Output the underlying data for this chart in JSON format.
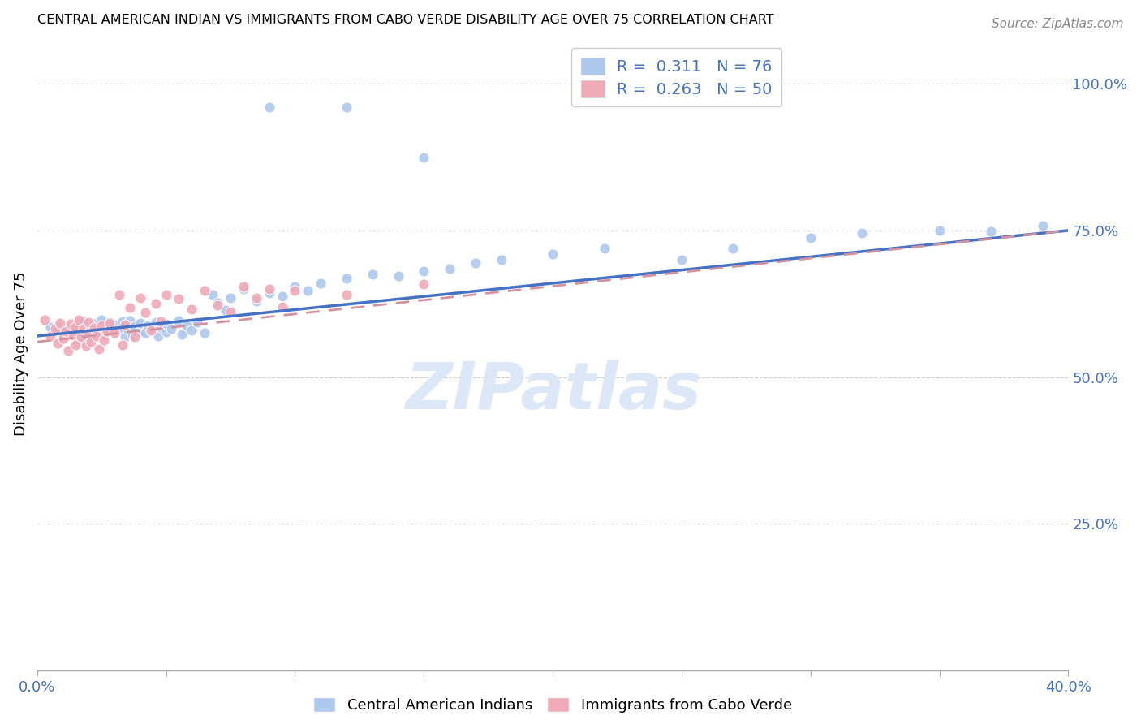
{
  "title": "CENTRAL AMERICAN INDIAN VS IMMIGRANTS FROM CABO VERDE DISABILITY AGE OVER 75 CORRELATION CHART",
  "source": "Source: ZipAtlas.com",
  "ylabel": "Disability Age Over 75",
  "xlim": [
    0.0,
    0.4
  ],
  "ylim": [
    0.0,
    1.08
  ],
  "xtick_positions": [
    0.0,
    0.05,
    0.1,
    0.15,
    0.2,
    0.25,
    0.3,
    0.35,
    0.4
  ],
  "xticklabels": [
    "0.0%",
    "",
    "",
    "",
    "",
    "",
    "",
    "",
    "40.0%"
  ],
  "ytick_right_positions": [
    0.25,
    0.5,
    0.75,
    1.0
  ],
  "ytick_right_labels": [
    "25.0%",
    "50.0%",
    "75.0%",
    "100.0%"
  ],
  "r_blue": 0.311,
  "n_blue": 76,
  "r_pink": 0.263,
  "n_pink": 50,
  "blue_color": "#adc8ed",
  "pink_color": "#f0aab8",
  "trendline_blue": "#4472c4",
  "trendline_pink_color": "#d4919e",
  "watermark": "ZIPatlas",
  "watermark_color": "#dce8f8",
  "legend_label_blue": "Central American Indians",
  "legend_label_pink": "Immigrants from Cabo Verde",
  "grid_color": "#cccccc",
  "blue_x": [
    0.005,
    0.008,
    0.01,
    0.01,
    0.012,
    0.015,
    0.015,
    0.016,
    0.017,
    0.018,
    0.02,
    0.02,
    0.022,
    0.022,
    0.023,
    0.025,
    0.025,
    0.026,
    0.027,
    0.028,
    0.03,
    0.03,
    0.032,
    0.033,
    0.034,
    0.035,
    0.036,
    0.037,
    0.038,
    0.04,
    0.04,
    0.042,
    0.043,
    0.045,
    0.046,
    0.047,
    0.048,
    0.05,
    0.05,
    0.052,
    0.055,
    0.056,
    0.058,
    0.06,
    0.062,
    0.065,
    0.068,
    0.07,
    0.073,
    0.075,
    0.08,
    0.085,
    0.09,
    0.095,
    0.1,
    0.105,
    0.11,
    0.12,
    0.13,
    0.14,
    0.15,
    0.16,
    0.17,
    0.18,
    0.2,
    0.22,
    0.25,
    0.27,
    0.3,
    0.32,
    0.35,
    0.37,
    0.39,
    0.09,
    0.12,
    0.15
  ],
  "blue_y": [
    0.585,
    0.587,
    0.572,
    0.58,
    0.575,
    0.583,
    0.592,
    0.565,
    0.578,
    0.595,
    0.568,
    0.582,
    0.576,
    0.591,
    0.573,
    0.586,
    0.598,
    0.571,
    0.584,
    0.593,
    0.575,
    0.59,
    0.58,
    0.595,
    0.568,
    0.582,
    0.596,
    0.572,
    0.587,
    0.578,
    0.592,
    0.575,
    0.588,
    0.58,
    0.593,
    0.57,
    0.585,
    0.577,
    0.591,
    0.583,
    0.596,
    0.573,
    0.588,
    0.58,
    0.594,
    0.575,
    0.64,
    0.627,
    0.614,
    0.635,
    0.65,
    0.63,
    0.643,
    0.638,
    0.655,
    0.648,
    0.66,
    0.668,
    0.675,
    0.672,
    0.68,
    0.685,
    0.695,
    0.7,
    0.71,
    0.72,
    0.7,
    0.72,
    0.738,
    0.745,
    0.75,
    0.748,
    0.758,
    0.96,
    0.96,
    0.875
  ],
  "pink_x": [
    0.003,
    0.005,
    0.007,
    0.008,
    0.009,
    0.01,
    0.011,
    0.012,
    0.013,
    0.014,
    0.015,
    0.015,
    0.016,
    0.017,
    0.018,
    0.019,
    0.02,
    0.02,
    0.021,
    0.022,
    0.023,
    0.024,
    0.025,
    0.026,
    0.027,
    0.028,
    0.03,
    0.032,
    0.033,
    0.034,
    0.036,
    0.038,
    0.04,
    0.042,
    0.044,
    0.046,
    0.048,
    0.05,
    0.055,
    0.06,
    0.065,
    0.07,
    0.075,
    0.08,
    0.085,
    0.09,
    0.095,
    0.1,
    0.12,
    0.15
  ],
  "pink_y": [
    0.598,
    0.57,
    0.583,
    0.558,
    0.592,
    0.566,
    0.578,
    0.545,
    0.591,
    0.572,
    0.585,
    0.555,
    0.597,
    0.568,
    0.582,
    0.553,
    0.576,
    0.593,
    0.56,
    0.584,
    0.57,
    0.548,
    0.588,
    0.563,
    0.578,
    0.592,
    0.575,
    0.64,
    0.555,
    0.59,
    0.618,
    0.568,
    0.635,
    0.61,
    0.58,
    0.625,
    0.595,
    0.64,
    0.633,
    0.615,
    0.648,
    0.622,
    0.612,
    0.655,
    0.635,
    0.65,
    0.62,
    0.648,
    0.64,
    0.658
  ]
}
